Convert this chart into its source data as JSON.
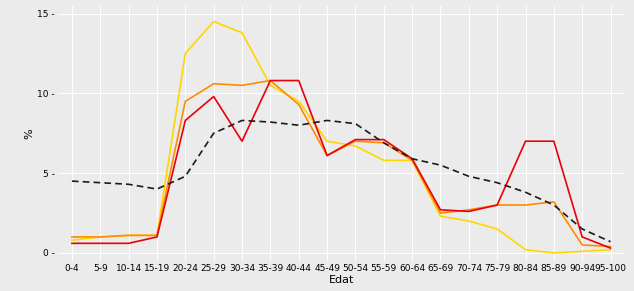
{
  "categories": [
    "0-4",
    "5-9",
    "10-14",
    "15-19",
    "20-24",
    "25-29",
    "30-34",
    "35-39",
    "40-44",
    "45-49",
    "50-54",
    "55-59",
    "60-64",
    "65-69",
    "70-74",
    "75-79",
    "80-84",
    "85-89",
    "90-94",
    "95-100"
  ],
  "yellow": [
    0.8,
    1.0,
    1.1,
    1.1,
    12.5,
    14.5,
    13.8,
    10.5,
    9.5,
    7.0,
    6.7,
    5.8,
    5.8,
    2.3,
    2.0,
    1.5,
    0.2,
    0.0,
    0.1,
    0.2
  ],
  "orange": [
    1.0,
    1.0,
    1.1,
    1.1,
    9.5,
    10.6,
    10.5,
    10.8,
    9.3,
    6.1,
    7.0,
    6.9,
    5.8,
    2.5,
    2.7,
    3.0,
    3.0,
    3.2,
    0.5,
    0.4
  ],
  "red": [
    0.6,
    0.6,
    0.6,
    1.0,
    8.3,
    9.8,
    7.0,
    10.8,
    10.8,
    6.1,
    7.1,
    7.1,
    5.9,
    2.7,
    2.6,
    3.0,
    7.0,
    7.0,
    1.0,
    0.3
  ],
  "dashed": [
    4.5,
    4.4,
    4.3,
    4.0,
    4.8,
    7.5,
    8.3,
    8.2,
    8.0,
    8.3,
    8.1,
    6.9,
    5.9,
    5.5,
    4.8,
    4.4,
    3.8,
    3.0,
    1.5,
    0.7
  ],
  "yellow_color": "#FFD700",
  "orange_color": "#FF8C00",
  "red_color": "#E8000A",
  "dashed_color": "#1A1A1A",
  "bg_color": "#EBEBEB",
  "xlabel": "Edat",
  "ylabel": "%",
  "ylim": [
    -0.5,
    15.5
  ],
  "ytick_vals": [
    0,
    5,
    10,
    15
  ],
  "ytick_labels": [
    "0 -",
    "5 -",
    "10 -",
    "15 -"
  ],
  "line_width": 1.2,
  "tick_fontsize": 6.5,
  "axis_label_fontsize": 8
}
